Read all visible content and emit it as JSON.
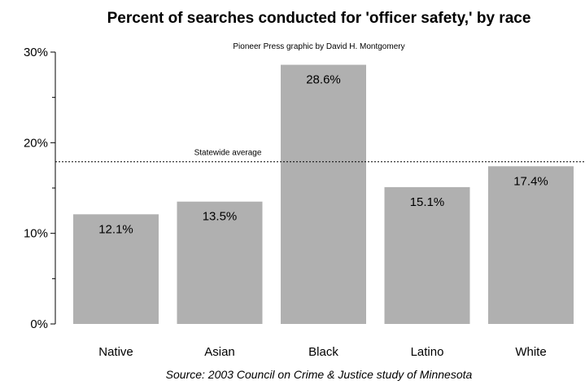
{
  "chart_data": {
    "type": "bar",
    "title": "Percent of searches conducted for 'officer safety,' by race",
    "subtitle": "Pioneer Press graphic by David H. Montgomery",
    "source": "Source: 2003 Council on Crime & Justice study of Minnesota",
    "categories": [
      "Native",
      "Asian",
      "Black",
      "Latino",
      "White"
    ],
    "values": [
      12.1,
      13.5,
      28.6,
      15.1,
      17.4
    ],
    "data_labels": [
      "12.1%",
      "13.5%",
      "28.6%",
      "15.1%",
      "17.4%"
    ],
    "xlabel": "",
    "ylabel": "",
    "ylim": [
      0,
      30
    ],
    "yticks": [
      {
        "value": 0,
        "label": "0%"
      },
      {
        "value": 10,
        "label": "10%"
      },
      {
        "value": 20,
        "label": "20%"
      },
      {
        "value": 30,
        "label": "30%"
      }
    ],
    "yticks_minor": [
      5,
      15,
      25
    ],
    "reference_line": {
      "label": "Statewide average",
      "value": 17.9,
      "style": "dotted"
    },
    "grid": false,
    "legend": "none",
    "bar_color": "#b0b0b0"
  }
}
